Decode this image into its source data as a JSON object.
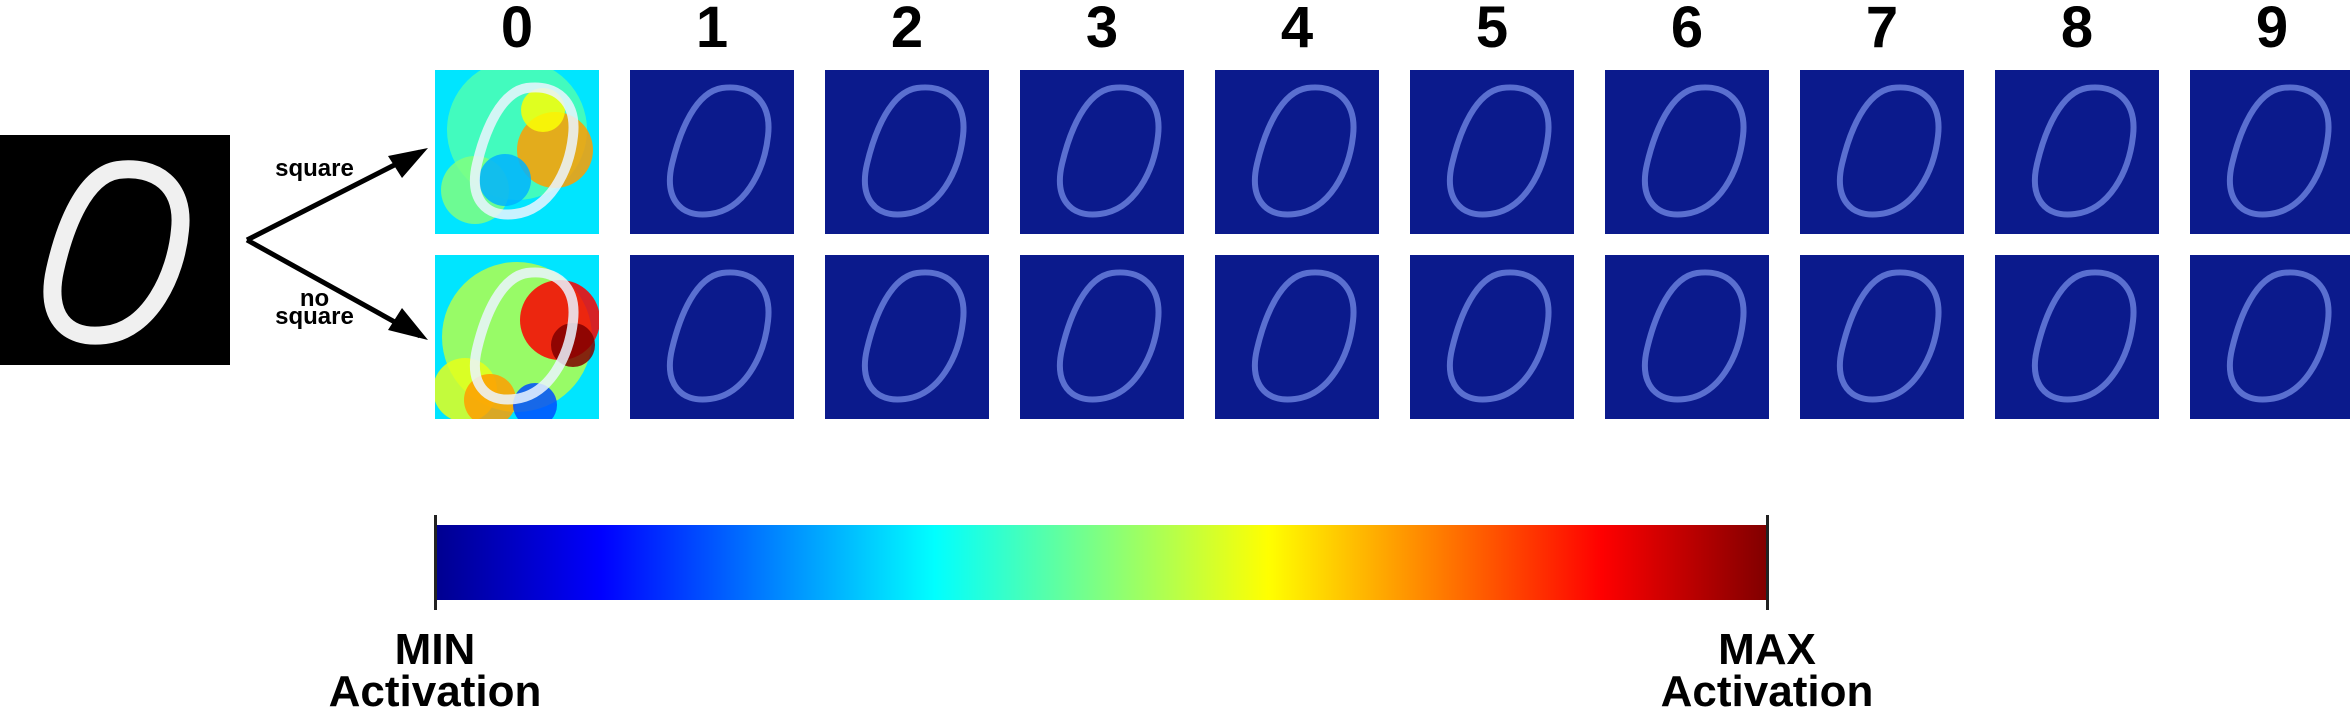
{
  "classes": [
    "0",
    "1",
    "2",
    "3",
    "4",
    "5",
    "6",
    "7",
    "8",
    "9"
  ],
  "rows": [
    {
      "label": "square"
    },
    {
      "label_line1": "no",
      "label_line2": "square"
    }
  ],
  "colorbar": {
    "min_line1": "MIN",
    "min_line2": "Activation",
    "max_line1": "MAX",
    "max_line2": "Activation",
    "colormap": "jet"
  },
  "colors": {
    "low": "#0b1a8c",
    "digit_on_low": "#5a6fd0",
    "digit_pixels": "#f2f2f2",
    "background": "#000000"
  },
  "heat_levels": {
    "square": [
      0.85,
      0.05,
      0.05,
      0.05,
      0.05,
      0.05,
      0.05,
      0.05,
      0.05,
      0.05
    ],
    "no_square": [
      0.95,
      0.05,
      0.05,
      0.05,
      0.1,
      0.05,
      0.05,
      0.05,
      0.05,
      0.05
    ]
  }
}
